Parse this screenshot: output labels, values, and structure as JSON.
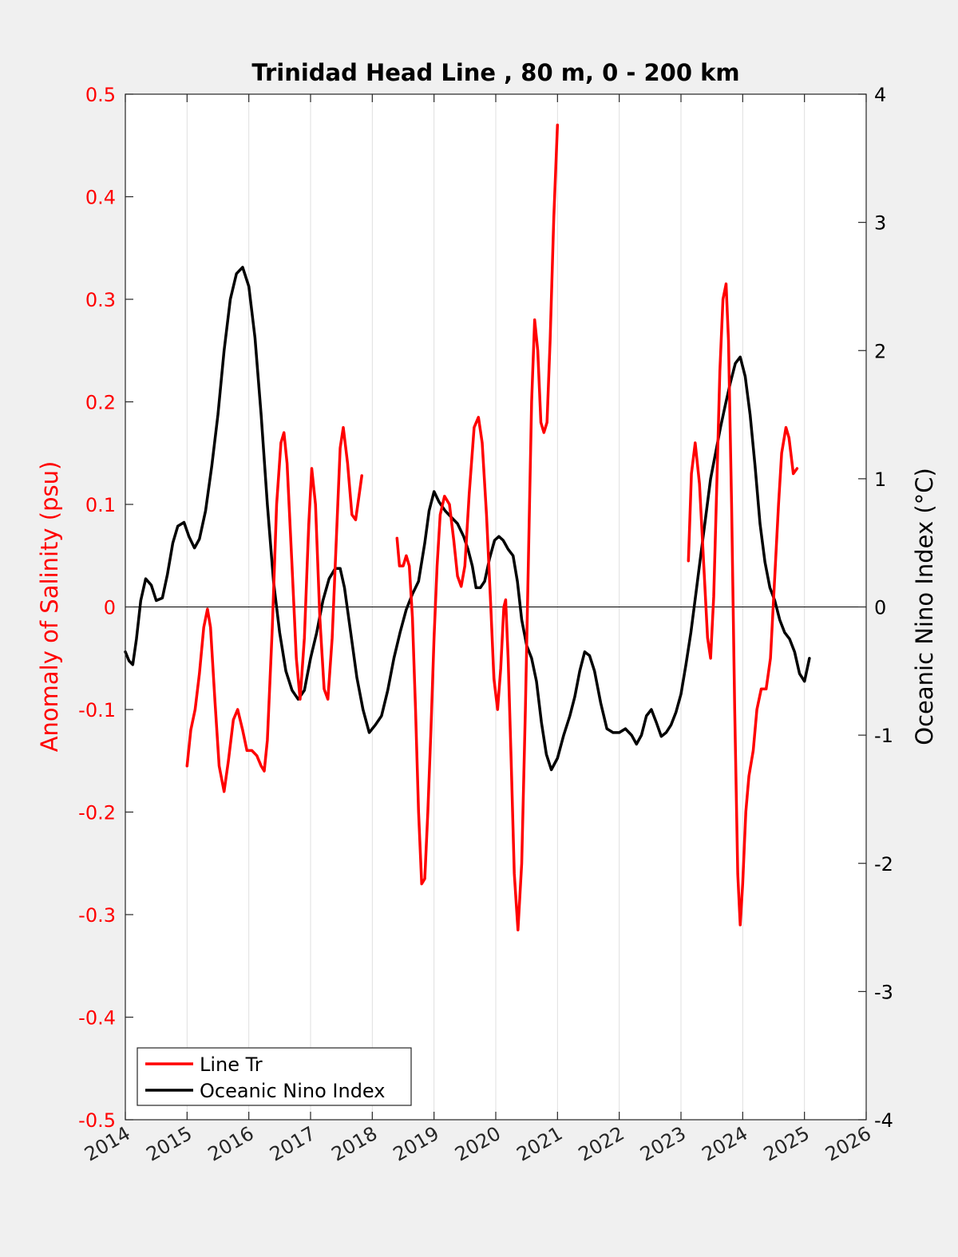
{
  "chart_data": {
    "type": "line",
    "title": "Trinidad Head Line , 80 m, 0 - 200 km",
    "xlabel": "",
    "ylabel_left": "Anomaly of Salinity (psu)",
    "ylabel_right": "Oceanic Nino Index (°C)",
    "xlim": [
      2014,
      2026
    ],
    "ylim_left": [
      -0.5,
      0.5
    ],
    "ylim_right": [
      -4,
      4
    ],
    "x_ticks": [
      "2014",
      "2015",
      "2016",
      "2017",
      "2018",
      "2019",
      "2020",
      "2021",
      "2022",
      "2023",
      "2024",
      "2025",
      "2026"
    ],
    "y_left_ticks": [
      "0.5",
      "0.4",
      "0.3",
      "0.2",
      "0.1",
      "0",
      "-0.1",
      "-0.2",
      "-0.3",
      "-0.4",
      "-0.5"
    ],
    "y_right_ticks": [
      "4",
      "3",
      "2",
      "1",
      "0",
      "-1",
      "-2",
      "-3",
      "-4"
    ],
    "grid": "vertical",
    "zero_line": true,
    "legend_position": "bottom-left",
    "colors": {
      "salinity": "#ff0000",
      "oni": "#000000",
      "left_axis": "#ff0000",
      "right_axis": "#000000"
    },
    "series": [
      {
        "name": "Line Tr",
        "axis": "left",
        "color": "#ff0000",
        "segments": [
          [
            [
              2015.0,
              -0.155
            ],
            [
              2015.06,
              -0.12
            ],
            [
              2015.13,
              -0.1
            ],
            [
              2015.2,
              -0.065
            ],
            [
              2015.27,
              -0.02
            ],
            [
              2015.33,
              -0.002
            ],
            [
              2015.38,
              -0.02
            ],
            [
              2015.45,
              -0.09
            ],
            [
              2015.52,
              -0.155
            ],
            [
              2015.6,
              -0.18
            ],
            [
              2015.67,
              -0.15
            ],
            [
              2015.75,
              -0.11
            ],
            [
              2015.82,
              -0.1
            ],
            [
              2015.9,
              -0.12
            ],
            [
              2015.97,
              -0.14
            ],
            [
              2016.05,
              -0.14
            ],
            [
              2016.13,
              -0.145
            ],
            [
              2016.2,
              -0.155
            ],
            [
              2016.25,
              -0.16
            ],
            [
              2016.3,
              -0.13
            ],
            [
              2016.38,
              -0.02
            ],
            [
              2016.45,
              0.1
            ],
            [
              2016.52,
              0.16
            ],
            [
              2016.57,
              0.17
            ],
            [
              2016.62,
              0.14
            ],
            [
              2016.7,
              0.04
            ],
            [
              2016.77,
              -0.05
            ],
            [
              2016.83,
              -0.09
            ],
            [
              2016.9,
              -0.03
            ],
            [
              2016.97,
              0.08
            ],
            [
              2017.02,
              0.135
            ],
            [
              2017.08,
              0.1
            ],
            [
              2017.15,
              -0.01
            ],
            [
              2017.22,
              -0.08
            ],
            [
              2017.28,
              -0.09
            ],
            [
              2017.35,
              -0.03
            ],
            [
              2017.42,
              0.07
            ],
            [
              2017.48,
              0.155
            ],
            [
              2017.53,
              0.175
            ],
            [
              2017.6,
              0.14
            ],
            [
              2017.67,
              0.09
            ],
            [
              2017.73,
              0.085
            ],
            [
              2017.8,
              0.115
            ],
            [
              2017.83,
              0.128
            ]
          ],
          [
            [
              2018.4,
              0.067
            ],
            [
              2018.44,
              0.04
            ],
            [
              2018.5,
              0.04
            ],
            [
              2018.55,
              0.05
            ],
            [
              2018.6,
              0.04
            ],
            [
              2018.65,
              -0.01
            ],
            [
              2018.7,
              -0.1
            ],
            [
              2018.75,
              -0.2
            ],
            [
              2018.8,
              -0.27
            ],
            [
              2018.85,
              -0.265
            ],
            [
              2018.9,
              -0.2
            ],
            [
              2018.95,
              -0.12
            ],
            [
              2019.0,
              -0.03
            ],
            [
              2019.05,
              0.04
            ],
            [
              2019.1,
              0.09
            ],
            [
              2019.17,
              0.108
            ],
            [
              2019.25,
              0.1
            ],
            [
              2019.32,
              0.065
            ],
            [
              2019.38,
              0.03
            ],
            [
              2019.44,
              0.02
            ],
            [
              2019.5,
              0.04
            ],
            [
              2019.57,
              0.11
            ],
            [
              2019.65,
              0.175
            ],
            [
              2019.72,
              0.185
            ],
            [
              2019.78,
              0.16
            ],
            [
              2019.85,
              0.09
            ],
            [
              2019.92,
              0.0
            ],
            [
              2019.97,
              -0.07
            ],
            [
              2020.03,
              -0.1
            ],
            [
              2020.08,
              -0.06
            ],
            [
              2020.13,
              0.0
            ],
            [
              2020.16,
              0.007
            ],
            [
              2020.2,
              -0.05
            ],
            [
              2020.25,
              -0.15
            ],
            [
              2020.3,
              -0.26
            ],
            [
              2020.36,
              -0.315
            ],
            [
              2020.42,
              -0.25
            ],
            [
              2020.48,
              -0.1
            ],
            [
              2020.53,
              0.05
            ],
            [
              2020.58,
              0.2
            ],
            [
              2020.63,
              0.28
            ],
            [
              2020.68,
              0.25
            ],
            [
              2020.73,
              0.18
            ],
            [
              2020.78,
              0.17
            ],
            [
              2020.83,
              0.18
            ],
            [
              2020.88,
              0.26
            ],
            [
              2020.94,
              0.38
            ],
            [
              2021.0,
              0.47
            ]
          ],
          [
            [
              2023.12,
              0.045
            ],
            [
              2023.17,
              0.13
            ],
            [
              2023.23,
              0.16
            ],
            [
              2023.3,
              0.12
            ],
            [
              2023.37,
              0.04
            ],
            [
              2023.43,
              -0.03
            ],
            [
              2023.48,
              -0.05
            ],
            [
              2023.53,
              0.01
            ],
            [
              2023.58,
              0.12
            ],
            [
              2023.63,
              0.23
            ],
            [
              2023.68,
              0.3
            ],
            [
              2023.73,
              0.315
            ],
            [
              2023.77,
              0.26
            ],
            [
              2023.82,
              0.1
            ],
            [
              2023.87,
              -0.1
            ],
            [
              2023.92,
              -0.26
            ],
            [
              2023.96,
              -0.31
            ],
            [
              2024.0,
              -0.27
            ],
            [
              2024.05,
              -0.2
            ],
            [
              2024.1,
              -0.165
            ],
            [
              2024.17,
              -0.14
            ],
            [
              2024.23,
              -0.1
            ],
            [
              2024.3,
              -0.08
            ],
            [
              2024.38,
              -0.08
            ],
            [
              2024.45,
              -0.05
            ],
            [
              2024.52,
              0.03
            ],
            [
              2024.58,
              0.1
            ],
            [
              2024.63,
              0.15
            ],
            [
              2024.7,
              0.175
            ],
            [
              2024.75,
              0.165
            ],
            [
              2024.82,
              0.13
            ],
            [
              2024.88,
              0.135
            ]
          ]
        ]
      },
      {
        "name": "Oceanic Nino Index",
        "axis": "right",
        "color": "#000000",
        "segments": [
          [
            [
              2014.0,
              -0.35
            ],
            [
              2014.06,
              -0.42
            ],
            [
              2014.12,
              -0.45
            ],
            [
              2014.18,
              -0.25
            ],
            [
              2014.25,
              0.05
            ],
            [
              2014.33,
              0.22
            ],
            [
              2014.42,
              0.17
            ],
            [
              2014.5,
              0.05
            ],
            [
              2014.6,
              0.07
            ],
            [
              2014.68,
              0.25
            ],
            [
              2014.77,
              0.5
            ],
            [
              2014.85,
              0.63
            ],
            [
              2014.95,
              0.66
            ],
            [
              2015.03,
              0.55
            ],
            [
              2015.12,
              0.46
            ],
            [
              2015.2,
              0.53
            ],
            [
              2015.3,
              0.75
            ],
            [
              2015.4,
              1.1
            ],
            [
              2015.5,
              1.5
            ],
            [
              2015.6,
              2.0
            ],
            [
              2015.7,
              2.4
            ],
            [
              2015.8,
              2.6
            ],
            [
              2015.9,
              2.65
            ],
            [
              2016.0,
              2.5
            ],
            [
              2016.1,
              2.1
            ],
            [
              2016.2,
              1.5
            ],
            [
              2016.3,
              0.8
            ],
            [
              2016.4,
              0.2
            ],
            [
              2016.5,
              -0.2
            ],
            [
              2016.6,
              -0.5
            ],
            [
              2016.7,
              -0.65
            ],
            [
              2016.8,
              -0.72
            ],
            [
              2016.9,
              -0.65
            ],
            [
              2017.0,
              -0.4
            ],
            [
              2017.1,
              -0.2
            ],
            [
              2017.2,
              0.05
            ],
            [
              2017.3,
              0.22
            ],
            [
              2017.4,
              0.3
            ],
            [
              2017.48,
              0.3
            ],
            [
              2017.55,
              0.15
            ],
            [
              2017.65,
              -0.2
            ],
            [
              2017.75,
              -0.55
            ],
            [
              2017.85,
              -0.8
            ],
            [
              2017.95,
              -0.98
            ],
            [
              2018.05,
              -0.92
            ],
            [
              2018.15,
              -0.85
            ],
            [
              2018.25,
              -0.65
            ],
            [
              2018.35,
              -0.4
            ],
            [
              2018.45,
              -0.2
            ],
            [
              2018.55,
              -0.02
            ],
            [
              2018.65,
              0.1
            ],
            [
              2018.75,
              0.2
            ],
            [
              2018.85,
              0.5
            ],
            [
              2018.92,
              0.75
            ],
            [
              2019.0,
              0.9
            ],
            [
              2019.08,
              0.82
            ],
            [
              2019.18,
              0.75
            ],
            [
              2019.28,
              0.7
            ],
            [
              2019.38,
              0.65
            ],
            [
              2019.48,
              0.55
            ],
            [
              2019.55,
              0.45
            ],
            [
              2019.62,
              0.32
            ],
            [
              2019.68,
              0.15
            ],
            [
              2019.75,
              0.15
            ],
            [
              2019.82,
              0.2
            ],
            [
              2019.9,
              0.38
            ],
            [
              2019.98,
              0.52
            ],
            [
              2020.05,
              0.55
            ],
            [
              2020.12,
              0.52
            ],
            [
              2020.2,
              0.45
            ],
            [
              2020.28,
              0.4
            ],
            [
              2020.35,
              0.2
            ],
            [
              2020.42,
              -0.1
            ],
            [
              2020.5,
              -0.3
            ],
            [
              2020.58,
              -0.4
            ],
            [
              2020.66,
              -0.58
            ],
            [
              2020.74,
              -0.9
            ],
            [
              2020.82,
              -1.15
            ],
            [
              2020.9,
              -1.27
            ],
            [
              2021.0,
              -1.18
            ],
            [
              2021.1,
              -1.0
            ],
            [
              2021.2,
              -0.85
            ],
            [
              2021.28,
              -0.7
            ],
            [
              2021.36,
              -0.5
            ],
            [
              2021.44,
              -0.35
            ],
            [
              2021.52,
              -0.38
            ],
            [
              2021.6,
              -0.5
            ],
            [
              2021.7,
              -0.75
            ],
            [
              2021.8,
              -0.95
            ],
            [
              2021.9,
              -0.98
            ],
            [
              2022.0,
              -0.98
            ],
            [
              2022.1,
              -0.95
            ],
            [
              2022.2,
              -1.0
            ],
            [
              2022.28,
              -1.07
            ],
            [
              2022.36,
              -1.0
            ],
            [
              2022.44,
              -0.85
            ],
            [
              2022.52,
              -0.8
            ],
            [
              2022.6,
              -0.9
            ],
            [
              2022.68,
              -1.01
            ],
            [
              2022.76,
              -0.98
            ],
            [
              2022.84,
              -0.92
            ],
            [
              2022.92,
              -0.82
            ],
            [
              2023.0,
              -0.68
            ],
            [
              2023.08,
              -0.45
            ],
            [
              2023.16,
              -0.2
            ],
            [
              2023.24,
              0.1
            ],
            [
              2023.32,
              0.4
            ],
            [
              2023.4,
              0.7
            ],
            [
              2023.48,
              1.0
            ],
            [
              2023.56,
              1.2
            ],
            [
              2023.64,
              1.4
            ],
            [
              2023.72,
              1.58
            ],
            [
              2023.8,
              1.75
            ],
            [
              2023.88,
              1.9
            ],
            [
              2023.96,
              1.95
            ],
            [
              2024.04,
              1.8
            ],
            [
              2024.12,
              1.5
            ],
            [
              2024.2,
              1.1
            ],
            [
              2024.28,
              0.65
            ],
            [
              2024.36,
              0.35
            ],
            [
              2024.44,
              0.15
            ],
            [
              2024.52,
              0.05
            ],
            [
              2024.6,
              -0.1
            ],
            [
              2024.68,
              -0.2
            ],
            [
              2024.76,
              -0.25
            ],
            [
              2024.84,
              -0.35
            ],
            [
              2024.92,
              -0.52
            ],
            [
              2025.0,
              -0.58
            ],
            [
              2025.08,
              -0.4
            ]
          ]
        ]
      }
    ]
  },
  "legend": {
    "items": [
      {
        "label": "Line Tr",
        "color": "#ff0000"
      },
      {
        "label": "Oceanic Nino Index",
        "color": "#000000"
      }
    ]
  }
}
